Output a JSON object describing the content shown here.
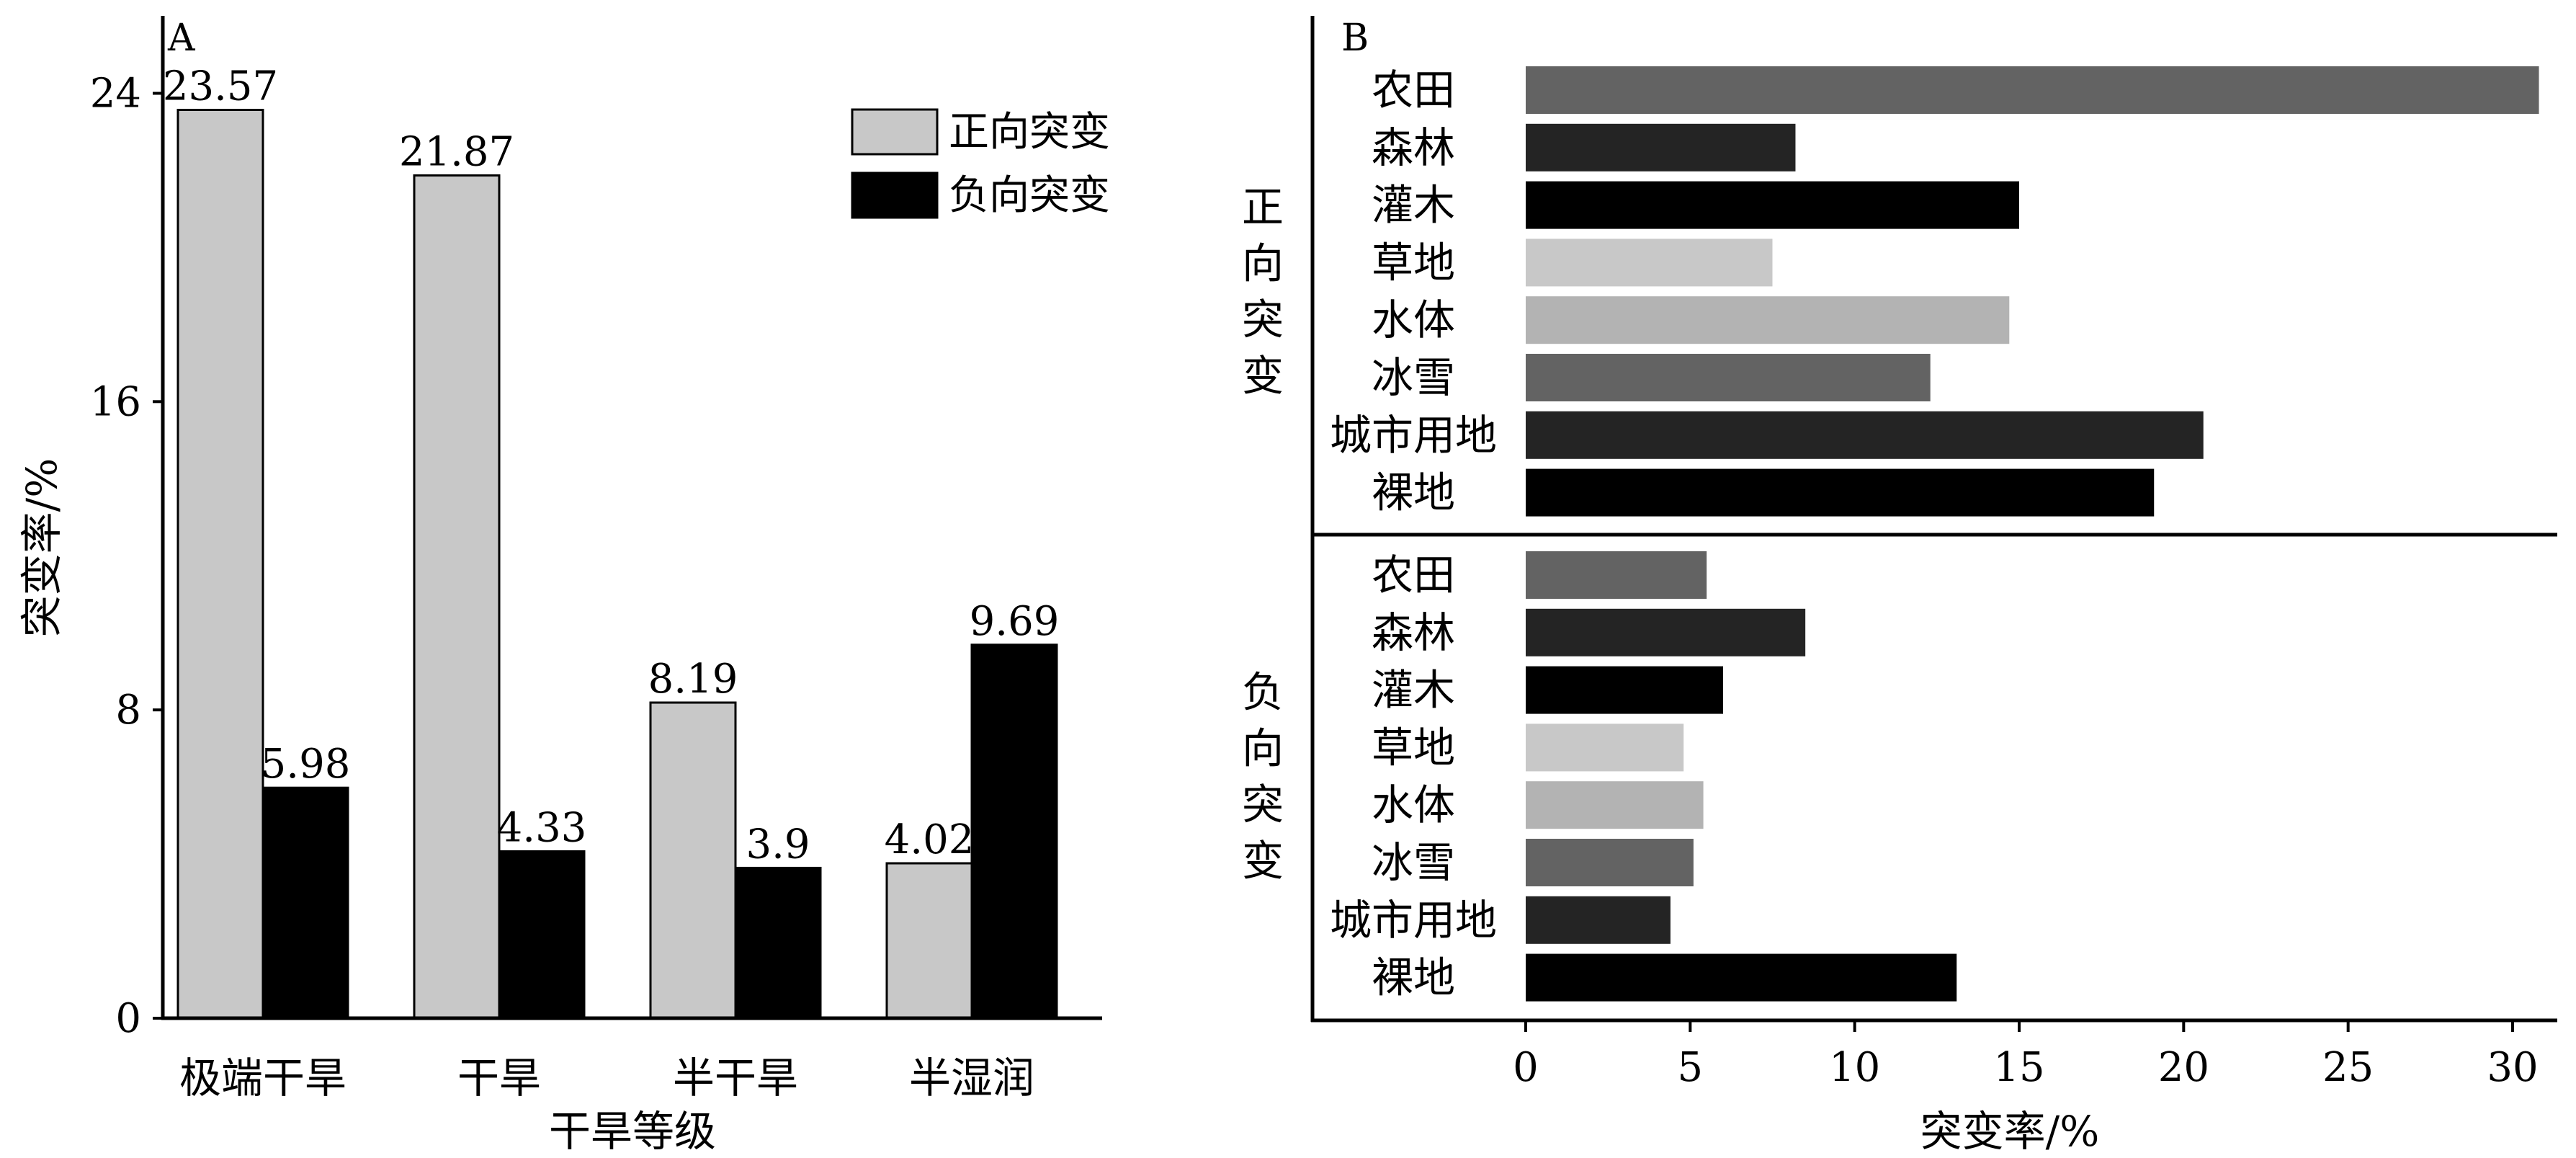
{
  "chart_data": [
    {
      "type": "bar",
      "panel_label": "A",
      "categories": [
        "极端干旱",
        "干旱",
        "半干旱",
        "半湿润"
      ],
      "series": [
        {
          "name": "正向突变",
          "values": [
            23.57,
            21.87,
            8.19,
            4.02
          ],
          "color": "#c8c8c8"
        },
        {
          "name": "负向突变",
          "values": [
            5.98,
            4.33,
            3.9,
            9.69
          ],
          "color": "#000000"
        }
      ],
      "data_labels": [
        [
          "23.57",
          "21.87",
          "8.19",
          "4.02"
        ],
        [
          "5.98",
          "4.33",
          "3.9",
          "9.69"
        ]
      ],
      "xlabel": "干旱等级",
      "ylabel": "突变率/%",
      "ylim": [
        0,
        24
      ],
      "yticks": [
        "0",
        "8",
        "16",
        "24"
      ],
      "grid": false,
      "legend": "top-right"
    },
    {
      "type": "bar",
      "orientation": "horizontal",
      "panel_label": "B",
      "groups": [
        {
          "name": "正向突变",
          "categories": [
            "农田",
            "森林",
            "灌木",
            "草地",
            "水体",
            "冰雪",
            "城市用地",
            "裸地"
          ],
          "values": [
            30.8,
            8.2,
            15.0,
            7.5,
            14.7,
            12.3,
            20.6,
            19.1
          ]
        },
        {
          "name": "负向突变",
          "categories": [
            "农田",
            "森林",
            "灌木",
            "草地",
            "水体",
            "冰雪",
            "城市用地",
            "裸地"
          ],
          "values": [
            5.5,
            8.5,
            6.0,
            4.8,
            5.4,
            5.1,
            4.4,
            13.1
          ]
        }
      ],
      "colors": [
        "#636363",
        "#242424",
        "#000000",
        "#c8c8c8",
        "#b3b3b3",
        "#636363",
        "#242424",
        "#000000"
      ],
      "xlabel": "突变率/%",
      "xlim": [
        0,
        31
      ],
      "xticks": [
        "0",
        "5",
        "10",
        "15",
        "20",
        "25",
        "30"
      ],
      "grid": false
    }
  ]
}
